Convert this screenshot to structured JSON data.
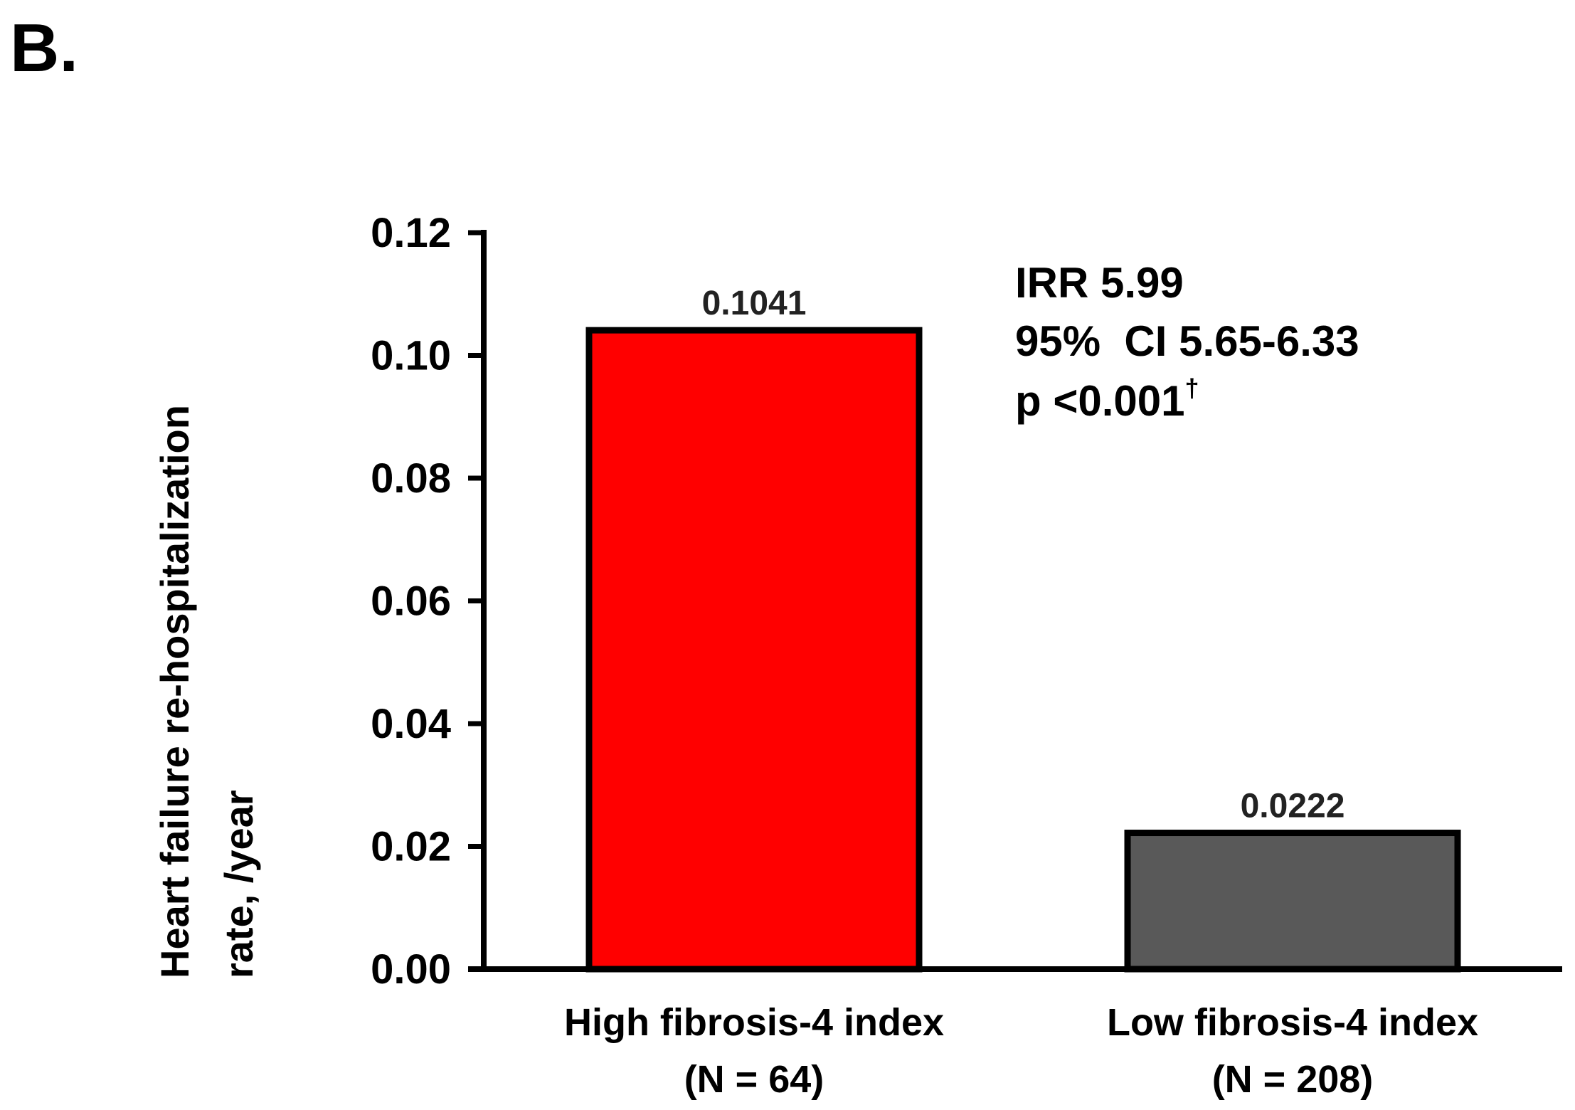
{
  "panel_label": "B.",
  "chart_data": {
    "type": "bar",
    "title": "",
    "xlabel": "",
    "ylabel_lines": [
      "Heart failure re-hospitalization",
      "rate, /year"
    ],
    "ylim": [
      0,
      0.12
    ],
    "yticks": [
      "0.00",
      "0.02",
      "0.04",
      "0.06",
      "0.08",
      "0.10",
      "0.12"
    ],
    "ytick_values": [
      0,
      0.02,
      0.04,
      0.06,
      0.08,
      0.1,
      0.12
    ],
    "categories": [
      [
        "High fibrosis-4 index",
        "(N = 64)"
      ],
      [
        "Low fibrosis-4 index",
        "(N = 208)"
      ]
    ],
    "values": [
      0.1041,
      0.0222
    ],
    "data_labels": [
      "0.1041",
      "0.0222"
    ],
    "bar_colors": [
      "#ff0000",
      "#595959"
    ],
    "grid": false,
    "annotation": {
      "lines": [
        "IRR 5.99",
        "95%  CI 5.65-6.33",
        "p <0.001"
      ],
      "superscript": "†"
    }
  }
}
